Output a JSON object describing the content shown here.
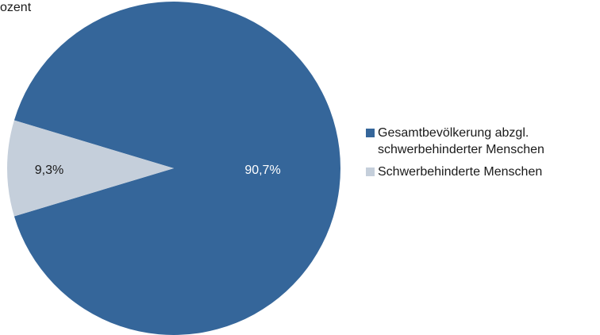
{
  "chart_data": {
    "type": "pie",
    "unit_label": "ozent",
    "slices": [
      {
        "name": "Gesamtbevölkerung abzgl.\nschwerbehinderter Menschen",
        "value": 90.7,
        "label": "90,7%",
        "color": "#35669a",
        "label_color": "#ffffff"
      },
      {
        "name": "Schwerbehinderte Menschen",
        "value": 9.3,
        "label": "9,3%",
        "color": "#c5cfdb",
        "label_color": "#1a1a1a"
      }
    ],
    "legend_position": "right"
  }
}
